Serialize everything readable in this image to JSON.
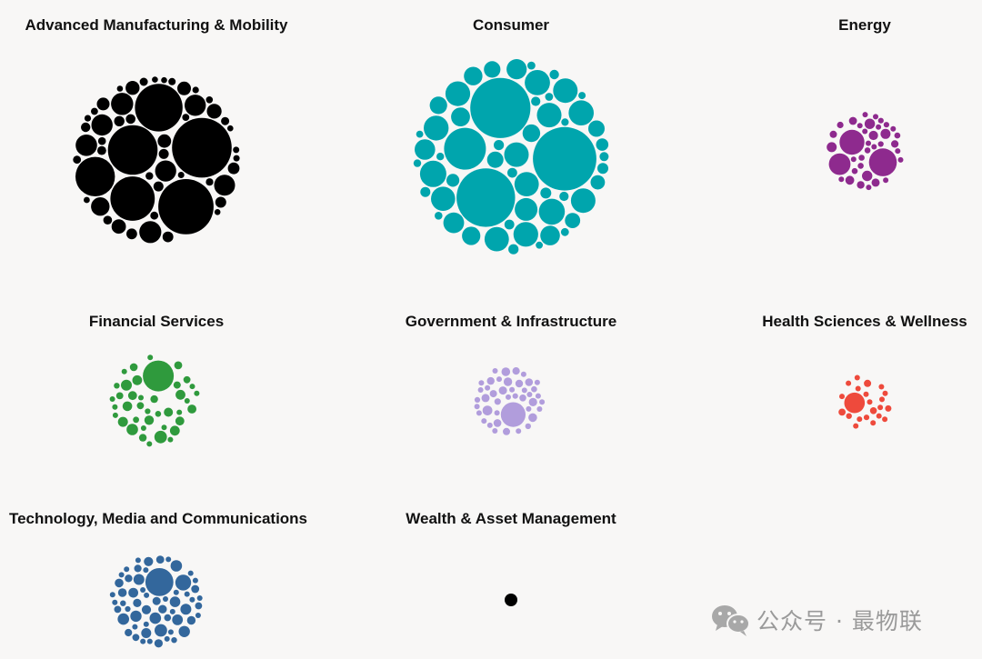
{
  "chart_data": {
    "type": "packed-bubble",
    "panels": [
      {
        "label": "Advanced Manufacturing & Mobility",
        "color": "#000000",
        "bubble_count": 150,
        "large_bubbles": 7
      },
      {
        "label": "Consumer",
        "color": "#00a5ad",
        "bubble_count": 230,
        "large_bubbles": 4
      },
      {
        "label": "Energy",
        "color": "#8e2a8e",
        "bubble_count": 40,
        "large_bubbles": 3
      },
      {
        "label": "Financial Services",
        "color": "#2f9a3d",
        "bubble_count": 40,
        "large_bubbles": 1
      },
      {
        "label": "Government & Infrastructure",
        "color": "#b19ddc",
        "bubble_count": 55,
        "large_bubbles": 1
      },
      {
        "label": "Health Sciences & Wellness",
        "color": "#ee4a3c",
        "bubble_count": 22,
        "large_bubbles": 1
      },
      {
        "label": "Technology, Media and Communications",
        "color": "#33679c",
        "bubble_count": 60,
        "large_bubbles": 2
      },
      {
        "label": "Wealth & Asset Management",
        "color": "#000000",
        "bubble_count": 1,
        "large_bubbles": 0
      }
    ]
  },
  "watermark": {
    "icon": "wechat-icon",
    "text": "公众号 · 最物联"
  }
}
